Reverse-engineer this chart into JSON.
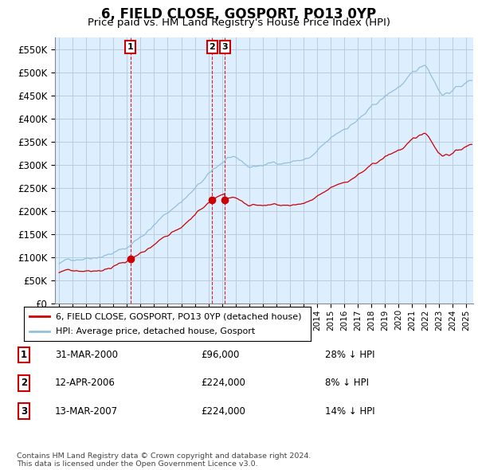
{
  "title": "6, FIELD CLOSE, GOSPORT, PO13 0YP",
  "subtitle": "Price paid vs. HM Land Registry's House Price Index (HPI)",
  "ytick_values": [
    0,
    50000,
    100000,
    150000,
    200000,
    250000,
    300000,
    350000,
    400000,
    450000,
    500000,
    550000
  ],
  "ylim": [
    0,
    575000
  ],
  "xlim_start": 1994.7,
  "xlim_end": 2025.5,
  "hpi_color": "#92c0dd",
  "price_color": "#cc0000",
  "chart_bg": "#ddeeff",
  "transaction_dates": [
    2000.25,
    2006.28,
    2007.21
  ],
  "transaction_prices": [
    96000,
    224000,
    224000
  ],
  "transaction_labels": [
    "1",
    "2",
    "3"
  ],
  "legend_price_label": "6, FIELD CLOSE, GOSPORT, PO13 0YP (detached house)",
  "legend_hpi_label": "HPI: Average price, detached house, Gosport",
  "table_rows": [
    {
      "num": "1",
      "date": "31-MAR-2000",
      "price": "£96,000",
      "note": "28% ↓ HPI"
    },
    {
      "num": "2",
      "date": "12-APR-2006",
      "price": "£224,000",
      "note": "8% ↓ HPI"
    },
    {
      "num": "3",
      "date": "13-MAR-2007",
      "price": "£224,000",
      "note": "14% ↓ HPI"
    }
  ],
  "footnote": "Contains HM Land Registry data © Crown copyright and database right 2024.\nThis data is licensed under the Open Government Licence v3.0.",
  "background_color": "#ffffff",
  "grid_color": "#bbccdd",
  "hpi_seed": 42,
  "price_seed": 77
}
